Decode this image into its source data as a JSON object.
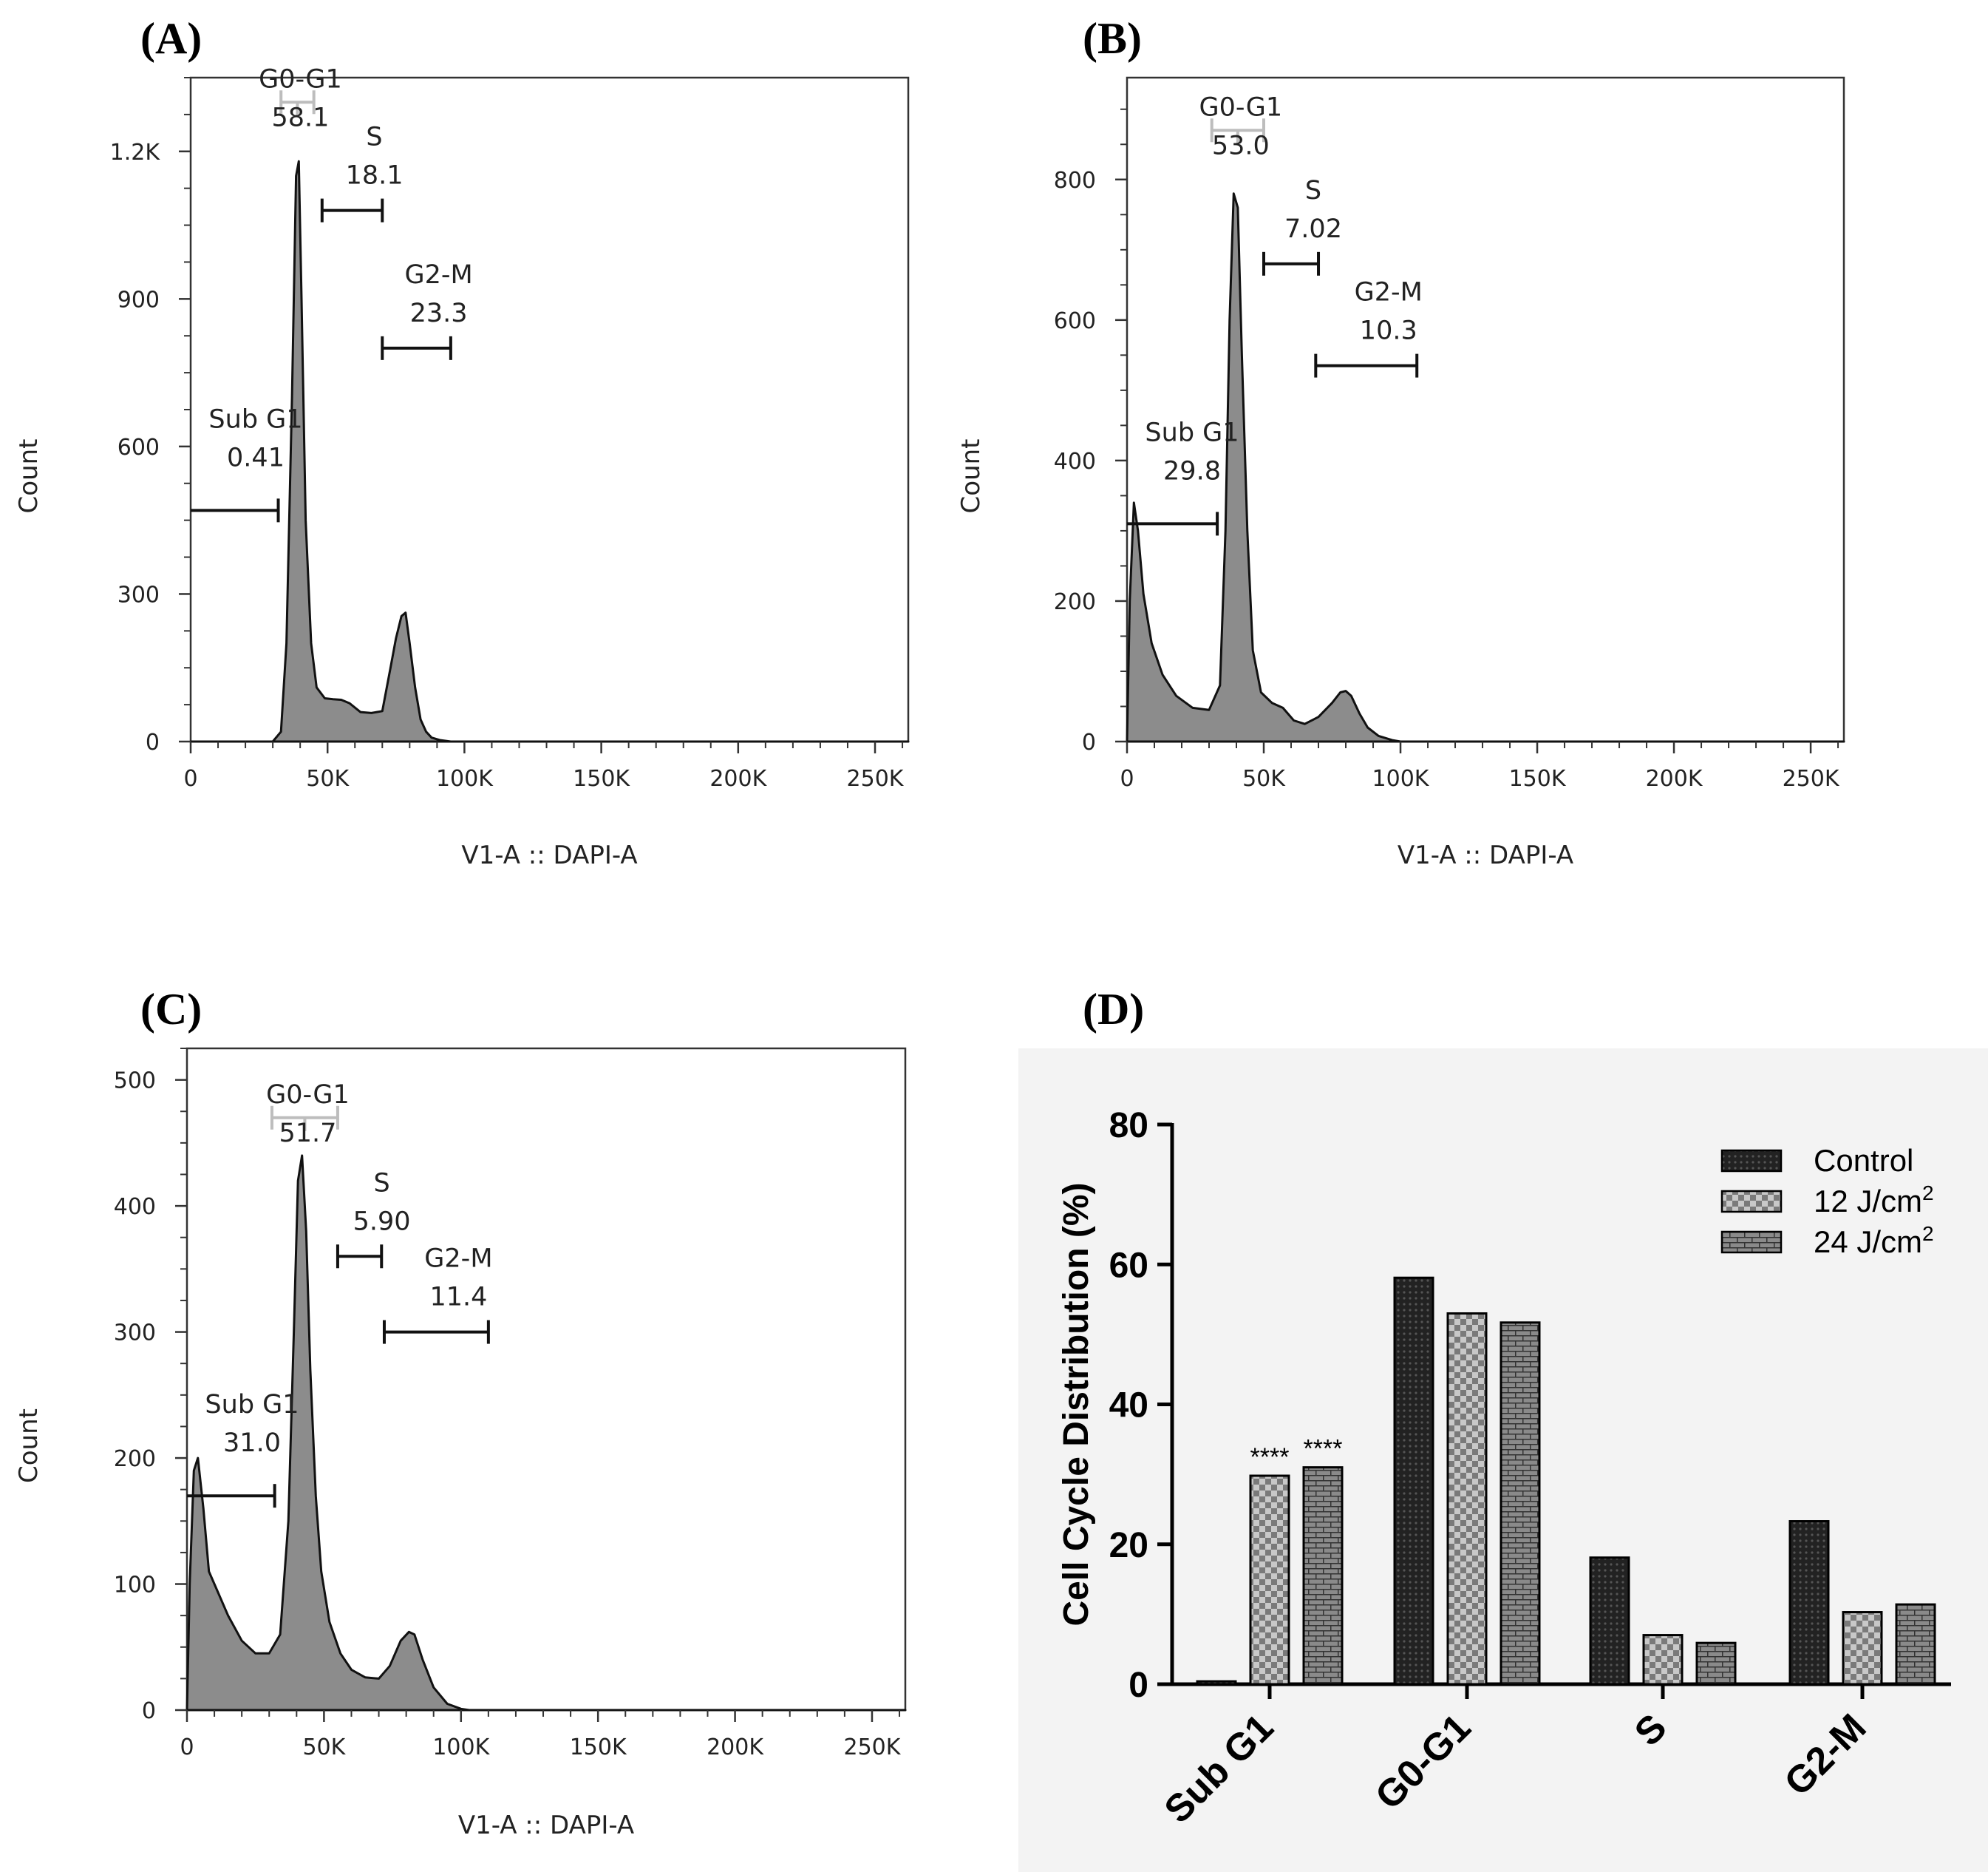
{
  "chart_data": [
    {
      "type": "area",
      "panel": "(A)",
      "xlabel": "V1-A :: DAPI-A",
      "ylabel": "Count",
      "xlim": [
        0,
        262144
      ],
      "ylim": [
        0,
        1350
      ],
      "xticks": [
        0,
        50000,
        100000,
        150000,
        200000,
        250000
      ],
      "xtick_labels": [
        "0",
        "50K",
        "100K",
        "150K",
        "200K",
        "250K"
      ],
      "yticks": [
        0,
        300,
        600,
        900,
        1200
      ],
      "ytick_labels": [
        "0",
        "300",
        "600",
        "900",
        "1.2K"
      ],
      "histogram": {
        "x": [
          0,
          30000,
          33000,
          35000,
          37000,
          38500,
          39500,
          40500,
          42000,
          44000,
          46000,
          49000,
          52000,
          55000,
          58000,
          62000,
          66000,
          70000,
          73000,
          75000,
          77000,
          78500,
          80000,
          82000,
          84000,
          86000,
          88000,
          91000,
          95000,
          262144
        ],
        "y": [
          0,
          0,
          20,
          200,
          700,
          1150,
          1180,
          900,
          450,
          200,
          110,
          88,
          86,
          85,
          78,
          60,
          58,
          62,
          150,
          210,
          255,
          262,
          200,
          110,
          45,
          20,
          8,
          3,
          0,
          0
        ]
      },
      "gates": [
        {
          "name": "Sub G1",
          "value": "0.41",
          "x": [
            0,
            32000
          ],
          "y": 470
        },
        {
          "name": "G0-G1",
          "value": "58.1",
          "x": [
            33000,
            45000
          ],
          "y": 1300
        },
        {
          "name": "S",
          "value": "18.1",
          "x": [
            48000,
            70000
          ],
          "y": 1080
        },
        {
          "name": "G2-M",
          "value": "23.3",
          "x": [
            70000,
            95000
          ],
          "y": 800
        }
      ]
    },
    {
      "type": "area",
      "panel": "(B)",
      "xlabel": "V1-A :: DAPI-A",
      "ylabel": "Count",
      "xlim": [
        0,
        262144
      ],
      "ylim": [
        0,
        945
      ],
      "xticks": [
        0,
        50000,
        100000,
        150000,
        200000,
        250000
      ],
      "xtick_labels": [
        "0",
        "50K",
        "100K",
        "150K",
        "200K",
        "250K"
      ],
      "yticks": [
        0,
        200,
        400,
        600,
        800
      ],
      "ytick_labels": [
        "0",
        "200",
        "400",
        "600",
        "800"
      ],
      "histogram": {
        "x": [
          0,
          1000,
          2500,
          4000,
          6000,
          9000,
          13000,
          18000,
          24000,
          30000,
          34000,
          36000,
          37500,
          39000,
          40500,
          42000,
          44000,
          46000,
          49000,
          53000,
          57000,
          61000,
          65000,
          70000,
          75000,
          78000,
          80000,
          82000,
          85000,
          88000,
          92000,
          97000,
          100000,
          262144
        ],
        "y": [
          0,
          200,
          340,
          300,
          210,
          140,
          95,
          65,
          48,
          45,
          80,
          300,
          600,
          780,
          760,
          550,
          300,
          130,
          70,
          55,
          48,
          30,
          25,
          35,
          55,
          70,
          72,
          65,
          40,
          20,
          8,
          2,
          0,
          0
        ]
      },
      "gates": [
        {
          "name": "Sub G1",
          "value": "29.8",
          "x": [
            0,
            33000
          ],
          "y": 310
        },
        {
          "name": "G0-G1",
          "value": "53.0",
          "x": [
            31000,
            50000
          ],
          "y": 870
        },
        {
          "name": "S",
          "value": "7.02",
          "x": [
            50000,
            70000
          ],
          "y": 680
        },
        {
          "name": "G2-M",
          "value": "10.3",
          "x": [
            69000,
            106000
          ],
          "y": 535
        }
      ]
    },
    {
      "type": "area",
      "panel": "(C)",
      "xlabel": "V1-A :: DAPI-A",
      "ylabel": "Count",
      "xlim": [
        0,
        262144
      ],
      "ylim": [
        0,
        525
      ],
      "xticks": [
        0,
        50000,
        100000,
        150000,
        200000,
        250000
      ],
      "xtick_labels": [
        "0",
        "50K",
        "100K",
        "150K",
        "200K",
        "250K"
      ],
      "yticks": [
        0,
        100,
        200,
        300,
        400,
        500
      ],
      "ytick_labels": [
        "0",
        "100",
        "200",
        "300",
        "400",
        "500"
      ],
      "histogram": {
        "x": [
          0,
          1000,
          2500,
          4000,
          6000,
          8000,
          11000,
          15000,
          20000,
          25000,
          30000,
          34000,
          37000,
          39000,
          40500,
          42000,
          43500,
          45000,
          47000,
          49000,
          52000,
          56000,
          60000,
          65000,
          70000,
          74000,
          78000,
          81000,
          83000,
          86000,
          90000,
          95000,
          100000,
          103000,
          262144
        ],
        "y": [
          0,
          100,
          190,
          200,
          160,
          110,
          95,
          75,
          55,
          45,
          45,
          60,
          150,
          300,
          420,
          440,
          380,
          270,
          170,
          110,
          70,
          45,
          32,
          26,
          25,
          35,
          55,
          62,
          60,
          40,
          18,
          5,
          1,
          0,
          0
        ]
      },
      "gates": [
        {
          "name": "Sub G1",
          "value": "31.0",
          "x": [
            0,
            32000
          ],
          "y": 170
        },
        {
          "name": "G0-G1",
          "value": "51.7",
          "x": [
            31000,
            55000
          ],
          "y": 470
        },
        {
          "name": "S",
          "value": "5.90",
          "x": [
            55000,
            71000
          ],
          "y": 360
        },
        {
          "name": "G2-M",
          "value": "11.4",
          "x": [
            72000,
            110000
          ],
          "y": 300
        }
      ]
    },
    {
      "type": "bar",
      "panel": "(D)",
      "ylabel": "Cell Cycle Distribution (%)",
      "ylim": [
        0,
        80
      ],
      "yticks": [
        0,
        20,
        40,
        60,
        80
      ],
      "categories": [
        "Sub G1",
        "G0-G1",
        "S",
        "G2-M"
      ],
      "series": [
        {
          "name": "Control",
          "values": [
            0.41,
            58.1,
            18.1,
            23.3
          ],
          "fill": "#1a1a1a"
        },
        {
          "name": "12 J/cm",
          "values": [
            29.8,
            53.0,
            7.02,
            10.3
          ],
          "fill": "#8f8f8f"
        },
        {
          "name": "24 J/cm",
          "values": [
            31.0,
            51.7,
            5.9,
            11.4
          ],
          "fill": "#6e6e6e"
        }
      ],
      "legend_superscript": "2",
      "legend_position": "top-right",
      "annotations": [
        {
          "text": "****",
          "category": "Sub G1",
          "series": "12 J/cm"
        },
        {
          "text": "****",
          "category": "Sub G1",
          "series": "24 J/cm"
        }
      ]
    }
  ]
}
